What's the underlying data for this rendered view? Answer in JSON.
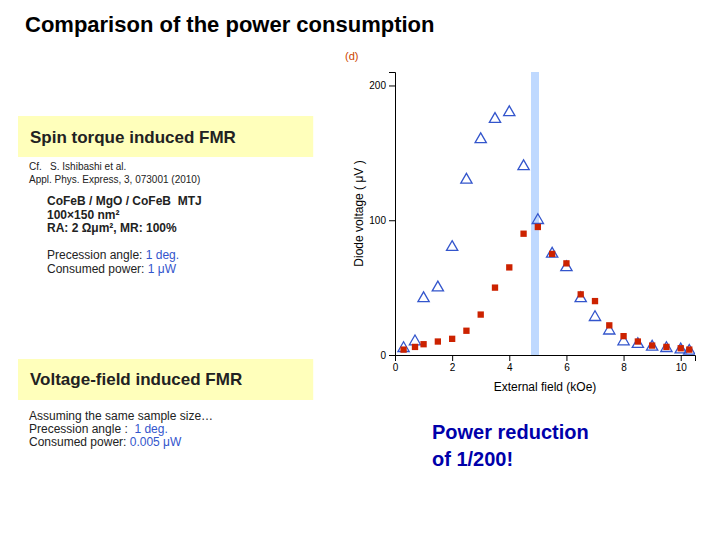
{
  "chart_data": {
    "type": "scatter",
    "title": "Comparison of the power consumption",
    "x_label": "External field (kOe)",
    "y_label": "Diode voltage ( μV )",
    "annotations": [
      "Spin torque induced FMR",
      "Cf.   S. Ishibashi et al.",
      "Appl. Phys. Express, 3, 073001 (2010)",
      "CoFeB / MgO / CoFeB  MTJ",
      "100×150 nm²",
      "RA: 2 Ωμm², MR: 100%",
      "Precession angle: ",
      "1 deg.",
      "Consumed power: ",
      "1 μW",
      "Voltage-field induced FMR",
      "Assuming the same sample size…",
      "Precession angle :  ",
      "1 deg.",
      "Consumed power: ",
      "0.005 μW",
      "Power reduction",
      "of 1/200!",
      "(d)"
    ],
    "x": [
      0.3,
      0.7,
      1.0,
      1.5,
      2.0,
      2.5,
      3.0,
      3.5,
      4.0,
      4.5,
      5.0,
      5.5,
      6.0,
      6.5,
      7.0,
      7.5,
      8.0,
      8.5,
      9.0,
      9.5,
      10.0,
      10.3
    ],
    "series": [
      {
        "color": "#3355cc",
        "marker": "triangle",
        "values": [
          5,
          10,
          42,
          50,
          80,
          130,
          160,
          175,
          180,
          140,
          100,
          75,
          65,
          42,
          28,
          18,
          10,
          8,
          6,
          5,
          4,
          3
        ]
      },
      {
        "color": "#cc2200",
        "marker": "square",
        "values": [
          4,
          6,
          8,
          10,
          12,
          18,
          30,
          50,
          65,
          90,
          95,
          75,
          68,
          45,
          40,
          22,
          14,
          10,
          7,
          6,
          5,
          4
        ]
      }
    ],
    "vline": 4.9,
    "xlim": [
      0,
      10.5
    ],
    "ylim": [
      0,
      210
    ],
    "xticks": [
      0,
      2,
      4,
      6,
      8,
      10
    ],
    "yticks": [
      0,
      100,
      200
    ],
    "grid": false
  }
}
